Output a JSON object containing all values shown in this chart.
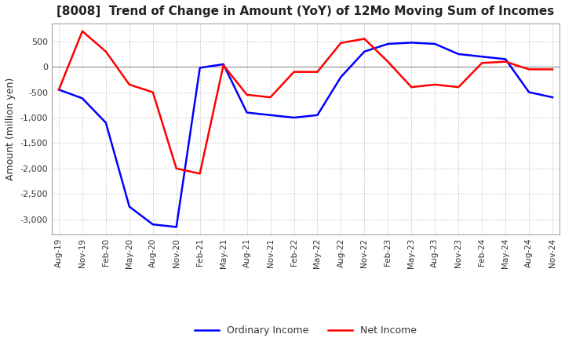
{
  "title": "[8008]  Trend of Change in Amount (YoY) of 12Mo Moving Sum of Incomes",
  "ylabel": "Amount (million yen)",
  "background_color": "#ffffff",
  "grid_color": "#aaaaaa",
  "ylim": [
    -3300,
    850
  ],
  "yticks": [
    500,
    0,
    -500,
    -1000,
    -1500,
    -2000,
    -2500,
    -3000
  ],
  "x_labels": [
    "Aug-19",
    "Nov-19",
    "Feb-20",
    "May-20",
    "Aug-20",
    "Nov-20",
    "Feb-21",
    "May-21",
    "Aug-21",
    "Nov-21",
    "Feb-22",
    "May-22",
    "Aug-22",
    "Nov-22",
    "Feb-23",
    "May-23",
    "Aug-23",
    "Nov-23",
    "Feb-24",
    "May-24",
    "Aug-24",
    "Nov-24"
  ],
  "ordinary_income": [
    -450,
    -620,
    -1100,
    -2750,
    -3100,
    -3150,
    -20,
    50,
    -900,
    -950,
    -1000,
    -950,
    -200,
    300,
    450,
    475,
    450,
    250,
    200,
    150,
    -500,
    -600
  ],
  "net_income": [
    -450,
    700,
    300,
    -350,
    -500,
    -2000,
    -2100,
    30,
    -550,
    -600,
    -100,
    -100,
    470,
    550,
    100,
    -400,
    -350,
    -400,
    75,
    100,
    -50,
    -50
  ],
  "ordinary_color": "#0000ff",
  "net_color": "#ff0000",
  "line_width": 1.8
}
